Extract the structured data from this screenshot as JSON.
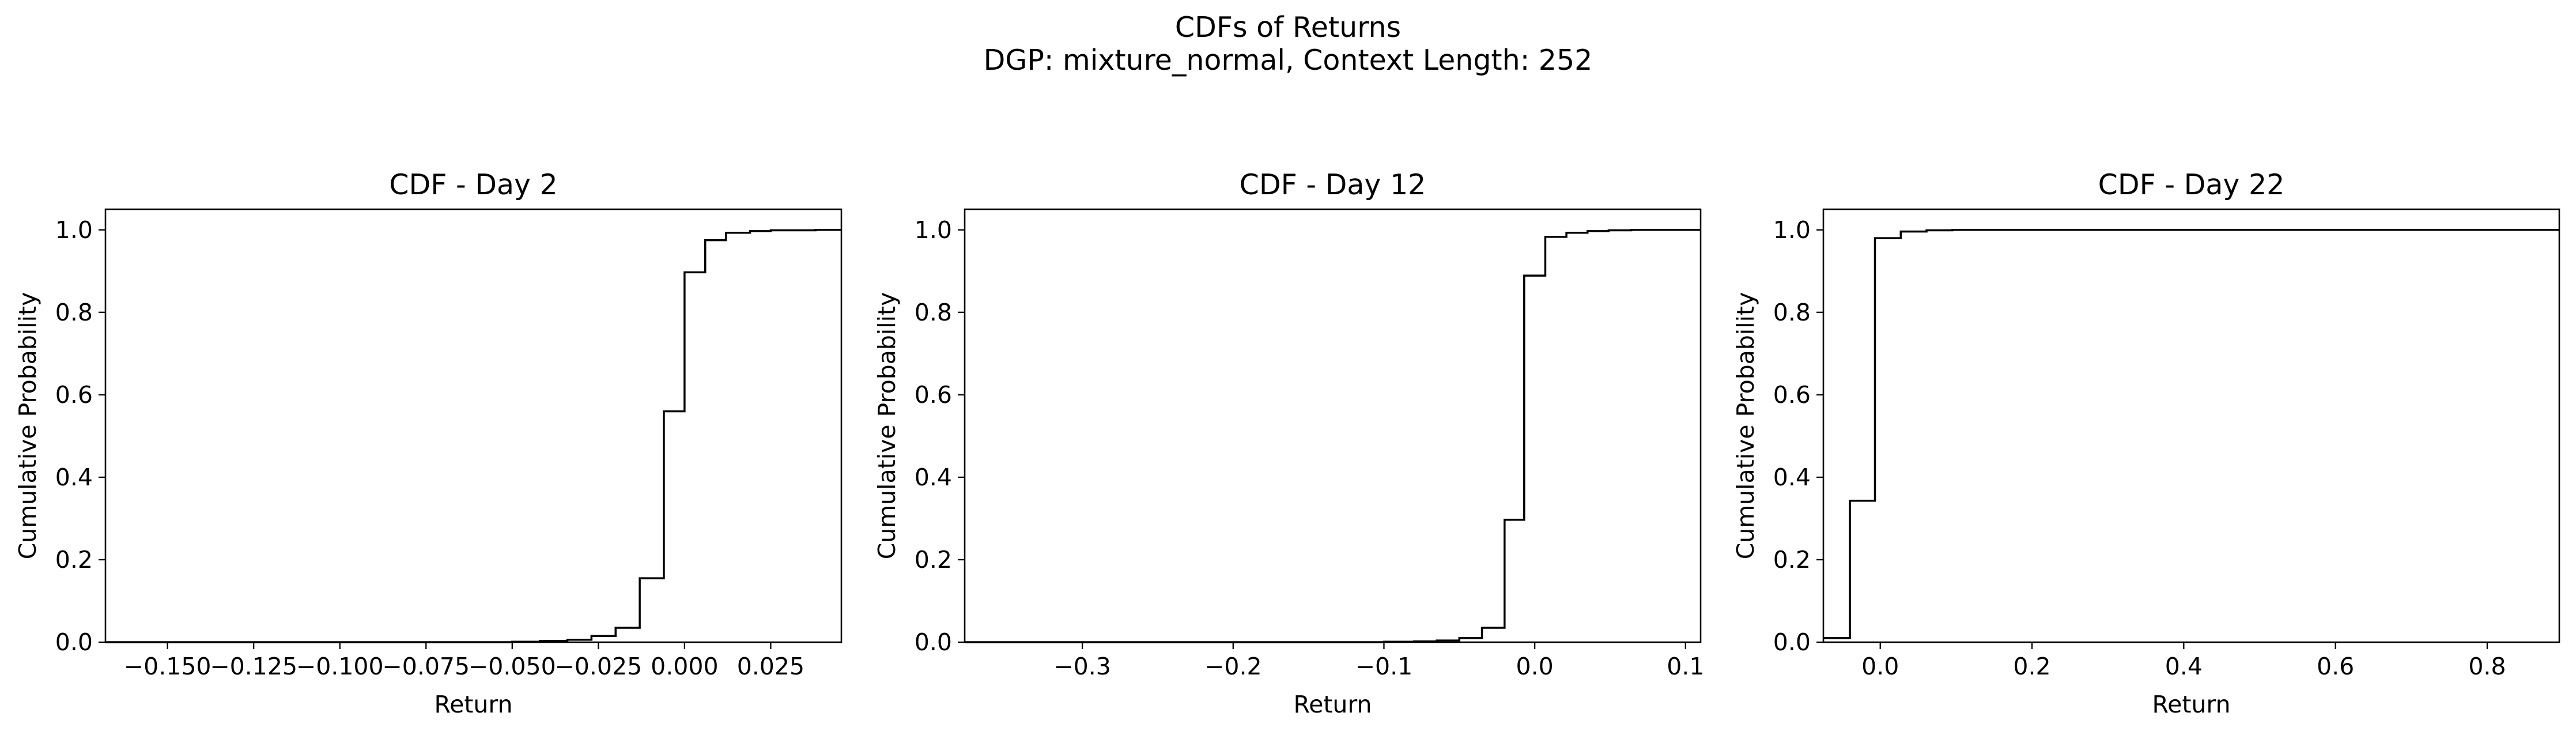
{
  "figure": {
    "title_line1": "CDFs of Returns",
    "title_line2": "DGP: mixture_normal, Context Length: 252"
  },
  "chart_data": [
    {
      "type": "line",
      "step": true,
      "title": "CDF - Day 2",
      "xlabel": "Return",
      "ylabel": "Cumulative Probability",
      "xlim": [
        -0.168,
        0.0455
      ],
      "ylim": [
        0.0,
        1.05
      ],
      "xticks": [
        -0.15,
        -0.125,
        -0.1,
        -0.075,
        -0.05,
        -0.025,
        0.0,
        0.025
      ],
      "xtick_labels": [
        "−0.150",
        "−0.125",
        "−0.100",
        "−0.075",
        "−0.050",
        "−0.025",
        "0.000",
        "0.025"
      ],
      "yticks": [
        0.0,
        0.2,
        0.4,
        0.6,
        0.8,
        1.0
      ],
      "ytick_labels": [
        "0.0",
        "0.2",
        "0.4",
        "0.6",
        "0.8",
        "1.0"
      ],
      "series": [
        {
          "color": "#000000",
          "x": [
            -0.168,
            -0.05,
            -0.042,
            -0.034,
            -0.027,
            -0.02,
            -0.013,
            -0.006,
            0.0,
            0.006,
            0.012,
            0.019,
            0.025,
            0.032,
            0.038,
            0.0455
          ],
          "y": [
            0.0,
            0.001,
            0.003,
            0.006,
            0.015,
            0.035,
            0.155,
            0.56,
            0.897,
            0.975,
            0.993,
            0.997,
            0.999,
            0.999,
            1.0,
            1.0
          ]
        }
      ],
      "grid": false
    },
    {
      "type": "line",
      "step": true,
      "title": "CDF - Day 12",
      "xlabel": "Return",
      "ylabel": "Cumulative Probability",
      "xlim": [
        -0.378,
        0.11
      ],
      "ylim": [
        0.0,
        1.05
      ],
      "xticks": [
        -0.3,
        -0.2,
        -0.1,
        0.0,
        0.1
      ],
      "xtick_labels": [
        "−0.3",
        "−0.2",
        "−0.1",
        "0.0",
        "0.1"
      ],
      "yticks": [
        0.0,
        0.2,
        0.4,
        0.6,
        0.8,
        1.0
      ],
      "ytick_labels": [
        "0.0",
        "0.2",
        "0.4",
        "0.6",
        "0.8",
        "1.0"
      ],
      "series": [
        {
          "color": "#000000",
          "x": [
            -0.378,
            -0.1,
            -0.08,
            -0.065,
            -0.05,
            -0.035,
            -0.02,
            -0.007,
            0.007,
            0.021,
            0.035,
            0.049,
            0.064,
            0.08,
            0.11
          ],
          "y": [
            0.0,
            0.001,
            0.002,
            0.004,
            0.01,
            0.035,
            0.297,
            0.889,
            0.983,
            0.993,
            0.997,
            0.999,
            1.0,
            1.0,
            1.0
          ]
        }
      ],
      "grid": false
    },
    {
      "type": "line",
      "step": true,
      "title": "CDF - Day 22",
      "xlabel": "Return",
      "ylabel": "Cumulative Probability",
      "xlim": [
        -0.075,
        0.895
      ],
      "ylim": [
        0.0,
        1.05
      ],
      "xticks": [
        0.0,
        0.2,
        0.4,
        0.6,
        0.8
      ],
      "xtick_labels": [
        "0.0",
        "0.2",
        "0.4",
        "0.6",
        "0.8"
      ],
      "yticks": [
        0.0,
        0.2,
        0.4,
        0.6,
        0.8,
        1.0
      ],
      "ytick_labels": [
        "0.0",
        "0.2",
        "0.4",
        "0.6",
        "0.8",
        "1.0"
      ],
      "series": [
        {
          "color": "#000000",
          "x": [
            -0.075,
            -0.04,
            -0.007,
            0.027,
            0.061,
            0.095,
            0.87,
            0.895
          ],
          "y": [
            0.01,
            0.343,
            0.98,
            0.996,
            0.999,
            1.0,
            1.0,
            1.0
          ]
        }
      ],
      "grid": false
    }
  ]
}
